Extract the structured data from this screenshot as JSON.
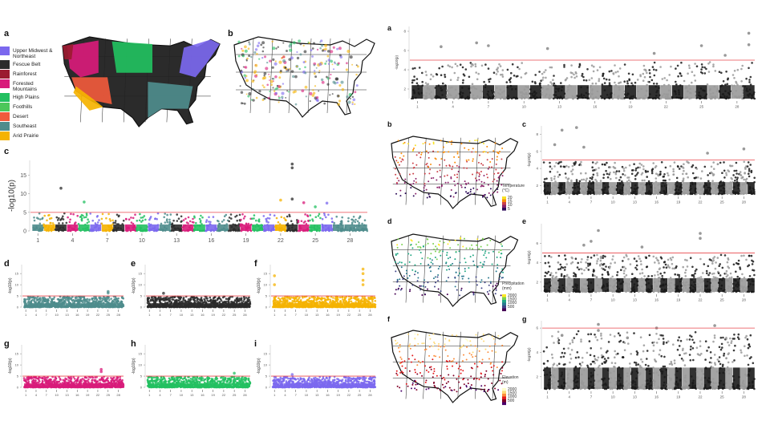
{
  "panel_letters": {
    "left": [
      "a",
      "b",
      "c",
      "d",
      "e",
      "f",
      "g",
      "h",
      "i"
    ],
    "right": [
      "a",
      "b",
      "c",
      "d",
      "e",
      "f",
      "g"
    ]
  },
  "ecoregions": [
    {
      "label": "Upper Midwest &\nNortheast",
      "color": "#7B68EE"
    },
    {
      "label": "Fescue Belt",
      "color": "#2b2b2b"
    },
    {
      "label": "Rainforest",
      "color": "#9B1B30"
    },
    {
      "label": "Forested\nMountains",
      "color": "#D81B7A"
    },
    {
      "label": "High Plains",
      "color": "#22C060"
    },
    {
      "label": "Foothills",
      "color": "#4CC75A"
    },
    {
      "label": "Desert",
      "color": "#F05A3C"
    },
    {
      "label": "Southeast",
      "color": "#4E8C8C"
    },
    {
      "label": "Arid Prairie",
      "color": "#F5B301"
    }
  ],
  "map_legends": {
    "temperature": {
      "title": "Temperature\n(°C)",
      "ticks": [
        "20",
        "15",
        "10",
        "5"
      ],
      "colors": [
        "#F7E225",
        "#F98C0A",
        "#CB4149",
        "#8A226A",
        "#2D0B59"
      ]
    },
    "precipitation": {
      "title": "Precipitation\n(mm)",
      "ticks": [
        "2000",
        "1500",
        "1000",
        "500"
      ],
      "colors": [
        "#FDE725",
        "#7AD151",
        "#22A884",
        "#2A788E",
        "#414487",
        "#440154"
      ]
    },
    "elevation": {
      "title": "Elevation\n(m)",
      "ticks": [
        "2000",
        "1500",
        "1000",
        "500"
      ],
      "colors": [
        "#FFFFCC",
        "#FED976",
        "#FD8D3C",
        "#E31A1C",
        "#800026",
        "#49006A"
      ]
    }
  },
  "chart_data": [
    {
      "id": "left-c",
      "type": "scatter",
      "ylabel": "-log10(p)",
      "yticks": [
        0,
        5,
        10,
        15
      ],
      "ylim": [
        0,
        19
      ],
      "threshold": 5,
      "xticks": [
        "1",
        "4",
        "7",
        "10",
        "13",
        "16",
        "19",
        "22",
        "25",
        "28"
      ],
      "colors_by_ecoregion": true,
      "peaks": [
        {
          "chr": 23,
          "y": 18
        },
        {
          "chr": 23,
          "y": 17
        },
        {
          "chr": 23,
          "y": 8.6
        },
        {
          "chr": 3,
          "y": 11.5
        },
        {
          "chr": 5,
          "y": 7.8
        },
        {
          "chr": 22,
          "y": 8.3
        },
        {
          "chr": 24,
          "y": 7.6
        },
        {
          "chr": 25,
          "y": 6.5
        },
        {
          "chr": 26,
          "y": 7.5
        }
      ]
    },
    {
      "id": "left-d",
      "type": "scatter",
      "ylabel": "-log10(p)",
      "yticks": [
        0,
        5,
        10,
        15
      ],
      "ylim": [
        0,
        19
      ],
      "threshold": 5,
      "xticks": [
        "1",
        "4",
        "7",
        "10",
        "13",
        "16",
        "19",
        "22",
        "25",
        "28"
      ],
      "color": "#4E8C8C",
      "peaks": [
        {
          "chr": 25,
          "y": 7
        },
        {
          "chr": 25,
          "y": 6.3
        }
      ]
    },
    {
      "id": "left-e",
      "type": "scatter",
      "ylabel": "-log10(p)",
      "yticks": [
        0,
        5,
        10,
        15
      ],
      "ylim": [
        0,
        19
      ],
      "threshold": 5,
      "xticks": [
        "1",
        "4",
        "7",
        "10",
        "13",
        "16",
        "19",
        "22",
        "25",
        "28"
      ],
      "color": "#2b2b2b",
      "peaks": [
        {
          "chr": 5,
          "y": 6.2
        }
      ]
    },
    {
      "id": "left-f",
      "type": "scatter",
      "ylabel": "-log10(p)",
      "yticks": [
        0,
        5,
        10,
        15
      ],
      "ylim": [
        0,
        19
      ],
      "threshold": 5,
      "xticks": [
        "1",
        "4",
        "7",
        "10",
        "13",
        "16",
        "19",
        "22",
        "25",
        "28"
      ],
      "color": "#F5B301",
      "peaks": [
        {
          "chr": 26,
          "y": 17
        },
        {
          "chr": 26,
          "y": 15
        },
        {
          "chr": 26,
          "y": 12
        },
        {
          "chr": 26,
          "y": 10
        },
        {
          "chr": 1,
          "y": 14
        },
        {
          "chr": 1,
          "y": 10
        }
      ]
    },
    {
      "id": "left-g",
      "type": "scatter",
      "ylabel": "-log10(p)",
      "yticks": [
        0,
        5,
        10,
        15
      ],
      "ylim": [
        0,
        19
      ],
      "threshold": 5,
      "xticks": [
        "1",
        "4",
        "7",
        "10",
        "13",
        "16",
        "19",
        "22",
        "25",
        "28"
      ],
      "color": "#D81B7A",
      "peaks": [
        {
          "chr": 23,
          "y": 8
        },
        {
          "chr": 23,
          "y": 7
        }
      ]
    },
    {
      "id": "left-h",
      "type": "scatter",
      "ylabel": "-log10(p)",
      "yticks": [
        0,
        5,
        10,
        15
      ],
      "ylim": [
        0,
        19
      ],
      "threshold": 5,
      "xticks": [
        "1",
        "4",
        "7",
        "10",
        "13",
        "16",
        "19",
        "22",
        "25",
        "28"
      ],
      "color": "#22C060",
      "peaks": [
        {
          "chr": 25,
          "y": 6.3
        }
      ]
    },
    {
      "id": "left-i",
      "type": "scatter",
      "ylabel": "-log10(p)",
      "yticks": [
        0,
        5,
        10,
        15
      ],
      "ylim": [
        0,
        19
      ],
      "threshold": 5,
      "xticks": [
        "1",
        "4",
        "7",
        "10",
        "13",
        "16",
        "19",
        "22",
        "25",
        "28"
      ],
      "color": "#7B68EE",
      "peaks": [
        {
          "chr": 6,
          "y": 5.7
        }
      ]
    },
    {
      "id": "right-a",
      "type": "scatter",
      "ylabel": "-log10(p)",
      "yticks": [
        2,
        4,
        6,
        8
      ],
      "ylim": [
        1,
        8.5
      ],
      "threshold": 5,
      "xticks": [
        "1",
        "4",
        "7",
        "10",
        "13",
        "16",
        "19",
        "22",
        "25",
        "28"
      ],
      "color_a": "#1a1a1a",
      "color_b": "#999999",
      "peaks": [
        {
          "chr": 29,
          "y": 7.8
        },
        {
          "chr": 29,
          "y": 6.6
        },
        {
          "chr": 3,
          "y": 6.4
        },
        {
          "chr": 6,
          "y": 6.8
        },
        {
          "chr": 7,
          "y": 6.5
        },
        {
          "chr": 12,
          "y": 6.2
        },
        {
          "chr": 21,
          "y": 5.7
        },
        {
          "chr": 25,
          "y": 6.5
        },
        {
          "chr": 27,
          "y": 5.5
        }
      ]
    },
    {
      "id": "right-c",
      "type": "scatter",
      "ylabel": "-log10(p)",
      "yticks": [
        2,
        4,
        6,
        8
      ],
      "ylim": [
        1,
        9
      ],
      "threshold": 5,
      "xticks": [
        "1",
        "4",
        "7",
        "10",
        "13",
        "16",
        "19",
        "22",
        "25",
        "28"
      ],
      "color_a": "#1a1a1a",
      "color_b": "#999999",
      "peaks": [
        {
          "chr": 3,
          "y": 8.5
        },
        {
          "chr": 5,
          "y": 8.8
        },
        {
          "chr": 2,
          "y": 6.8
        },
        {
          "chr": 6,
          "y": 6.5
        },
        {
          "chr": 28,
          "y": 6.3
        },
        {
          "chr": 23,
          "y": 5.8
        }
      ]
    },
    {
      "id": "right-e",
      "type": "scatter",
      "ylabel": "-log10(p)",
      "yticks": [
        2,
        4,
        6
      ],
      "ylim": [
        1,
        8
      ],
      "threshold": 5,
      "xticks": [
        "1",
        "4",
        "7",
        "10",
        "13",
        "16",
        "19",
        "22",
        "25",
        "28"
      ],
      "color_a": "#1a1a1a",
      "color_b": "#999999",
      "peaks": [
        {
          "chr": 8,
          "y": 7.3
        },
        {
          "chr": 22,
          "y": 7
        },
        {
          "chr": 22,
          "y": 6.5
        },
        {
          "chr": 7,
          "y": 6.2
        },
        {
          "chr": 6,
          "y": 5.8
        },
        {
          "chr": 14,
          "y": 5.6
        }
      ]
    },
    {
      "id": "right-g",
      "type": "scatter",
      "ylabel": "-log10(p)",
      "yticks": [
        2,
        4,
        6
      ],
      "ylim": [
        1,
        6.6
      ],
      "threshold": 6,
      "xticks": [
        "1",
        "4",
        "7",
        "10",
        "13",
        "16",
        "19",
        "22",
        "25",
        "28"
      ],
      "color_a": "#1a1a1a",
      "color_b": "#999999",
      "peaks": [
        {
          "chr": 8,
          "y": 6.3
        },
        {
          "chr": 8,
          "y": 5.8
        },
        {
          "chr": 16,
          "y": 6
        },
        {
          "chr": 24,
          "y": 6.2
        },
        {
          "chr": 3,
          "y": 5.4
        },
        {
          "chr": 12,
          "y": 5.2
        }
      ]
    }
  ]
}
